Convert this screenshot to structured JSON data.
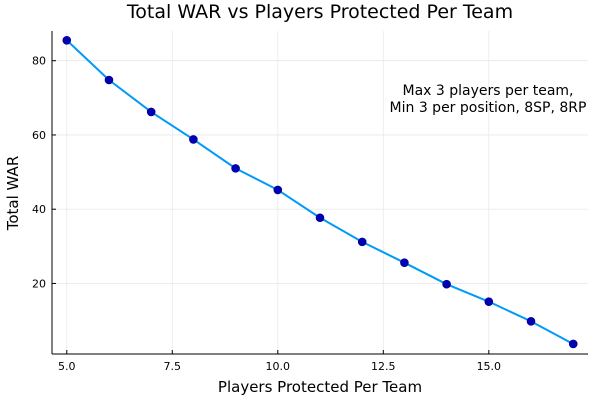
{
  "chart_data": {
    "type": "line",
    "title": "Total WAR vs Players Protected Per Team",
    "xlabel": "Players Protected Per Team",
    "ylabel": "Total WAR",
    "xlim": [
      4.65,
      17.35
    ],
    "ylim": [
      1.0,
      88.0
    ],
    "xticks": [
      5.0,
      7.5,
      10.0,
      12.5,
      15.0
    ],
    "xtick_labels": [
      "5.0",
      "7.5",
      "10.0",
      "12.5",
      "15.0"
    ],
    "yticks": [
      20,
      40,
      60,
      80
    ],
    "ytick_labels": [
      "20",
      "40",
      "60",
      "80"
    ],
    "grid": true,
    "legend": "none",
    "line_color": "#009af9",
    "marker_color": "#0000b4",
    "annotation": [
      "Max 3 players per team,",
      "Min 3 per position, 8SP, 8RP"
    ],
    "x": [
      5,
      6,
      7,
      8,
      9,
      10,
      11,
      12,
      13,
      14,
      15,
      16,
      17
    ],
    "values": [
      85.5,
      74.8,
      66.2,
      58.8,
      51.0,
      45.2,
      37.7,
      31.2,
      25.6,
      19.8,
      15.1,
      9.8,
      3.7
    ]
  }
}
